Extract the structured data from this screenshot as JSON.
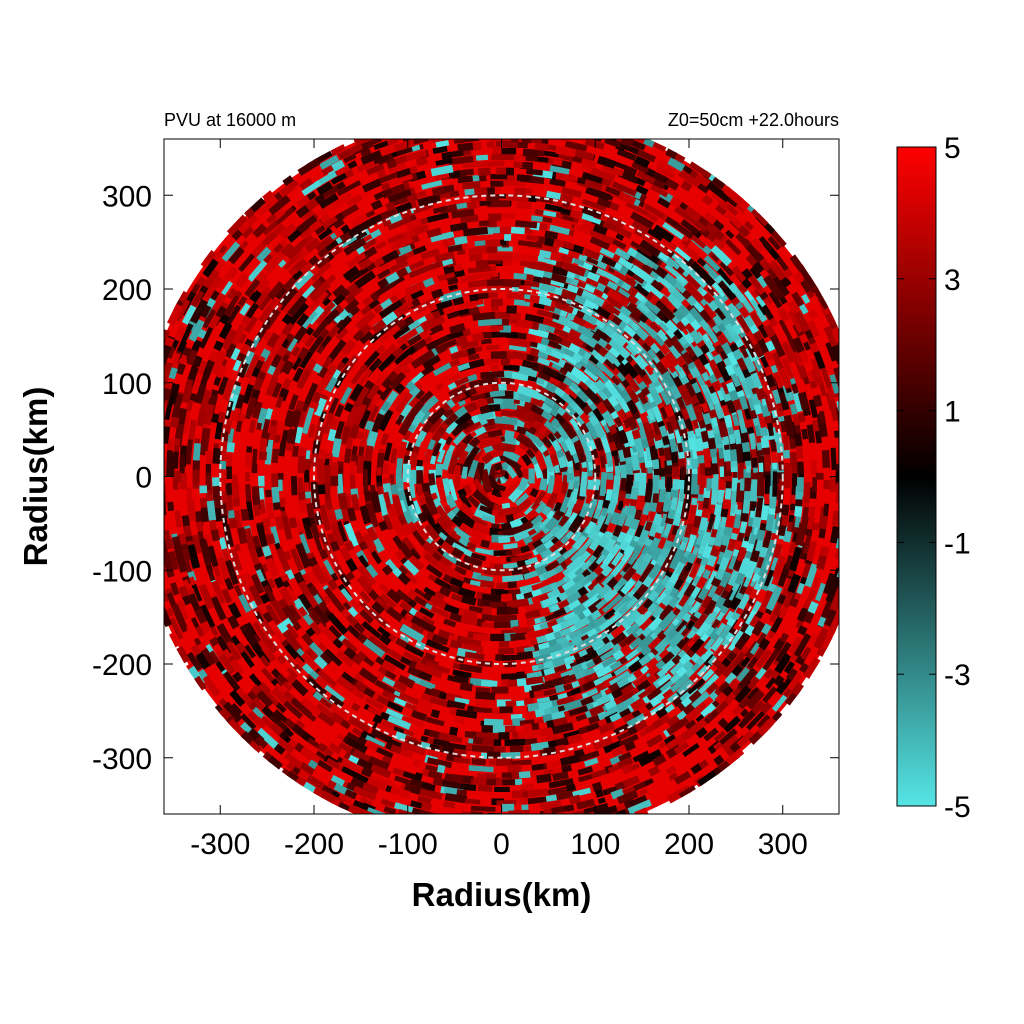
{
  "chart_data": {
    "type": "heatmap",
    "title_left": "PVU at 16000 m",
    "title_right": "Z0=50cm  +22.0hours",
    "xlabel": "Radius(km)",
    "ylabel": "Radius(km)",
    "xlim": [
      -360,
      360
    ],
    "ylim": [
      -360,
      360
    ],
    "xticks": [
      -300,
      -200,
      -100,
      0,
      100,
      200,
      300
    ],
    "yticks": [
      -300,
      -200,
      -100,
      0,
      100,
      200,
      300
    ],
    "xtick_labels": [
      "-300",
      "-200",
      "-100",
      "0",
      "100",
      "200",
      "300"
    ],
    "ytick_labels": [
      "300",
      "200",
      "100",
      "0",
      "-100",
      "-200",
      "-300"
    ],
    "domain_radius_km": 390,
    "reference_circles_km": [
      100,
      200,
      300
    ],
    "reference_circle_style": "dashed",
    "colorbar": {
      "min": -5,
      "max": 5,
      "ticks": [
        "5",
        "3",
        "1",
        "-1",
        "-3",
        "-5"
      ],
      "colors": [
        "#55e5e5",
        "#000000",
        "#ff0000"
      ]
    },
    "field_summary": "mostly positive PVU (red) with negative (cyan) spiral bands concentrated east of center and scattered elsewhere"
  }
}
